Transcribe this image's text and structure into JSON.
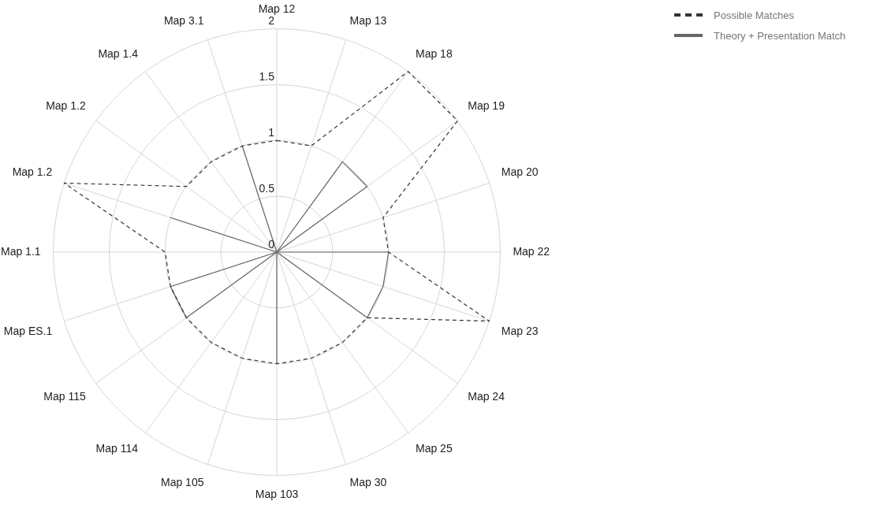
{
  "chart_data": {
    "type": "radar",
    "categories": [
      "Map 12",
      "Map 13",
      "Map 18",
      "Map 19",
      "Map 20",
      "Map 22",
      "Map 23",
      "Map 24",
      "Map 25",
      "Map 30",
      "Map 103",
      "Map 105",
      "Map 114",
      "Map 115",
      "Map ES.1",
      "Map 1.1",
      "Map 1.2",
      "Map 1.2",
      "Map 1.4",
      "Map 3.1"
    ],
    "series": [
      {
        "name": "Possible Matches",
        "color": "#333333",
        "line_style": "dashed",
        "values": [
          1,
          1,
          2,
          2,
          1,
          1,
          2,
          1,
          1,
          1,
          1,
          1,
          1,
          1,
          1,
          1,
          2,
          1,
          1,
          1
        ]
      },
      {
        "name": "Theory + Presentation Match",
        "color": "#666666",
        "line_style": "solid",
        "values": [
          0,
          0,
          1,
          1,
          0,
          1,
          1,
          1,
          0,
          0,
          1,
          0,
          0,
          1,
          1,
          0,
          1,
          0,
          0,
          1
        ]
      }
    ],
    "ylim": [
      0,
      2
    ],
    "yticks": [
      0,
      0.5,
      1,
      1.5,
      2
    ],
    "grid": true,
    "legend": "top right",
    "marker": "none"
  }
}
